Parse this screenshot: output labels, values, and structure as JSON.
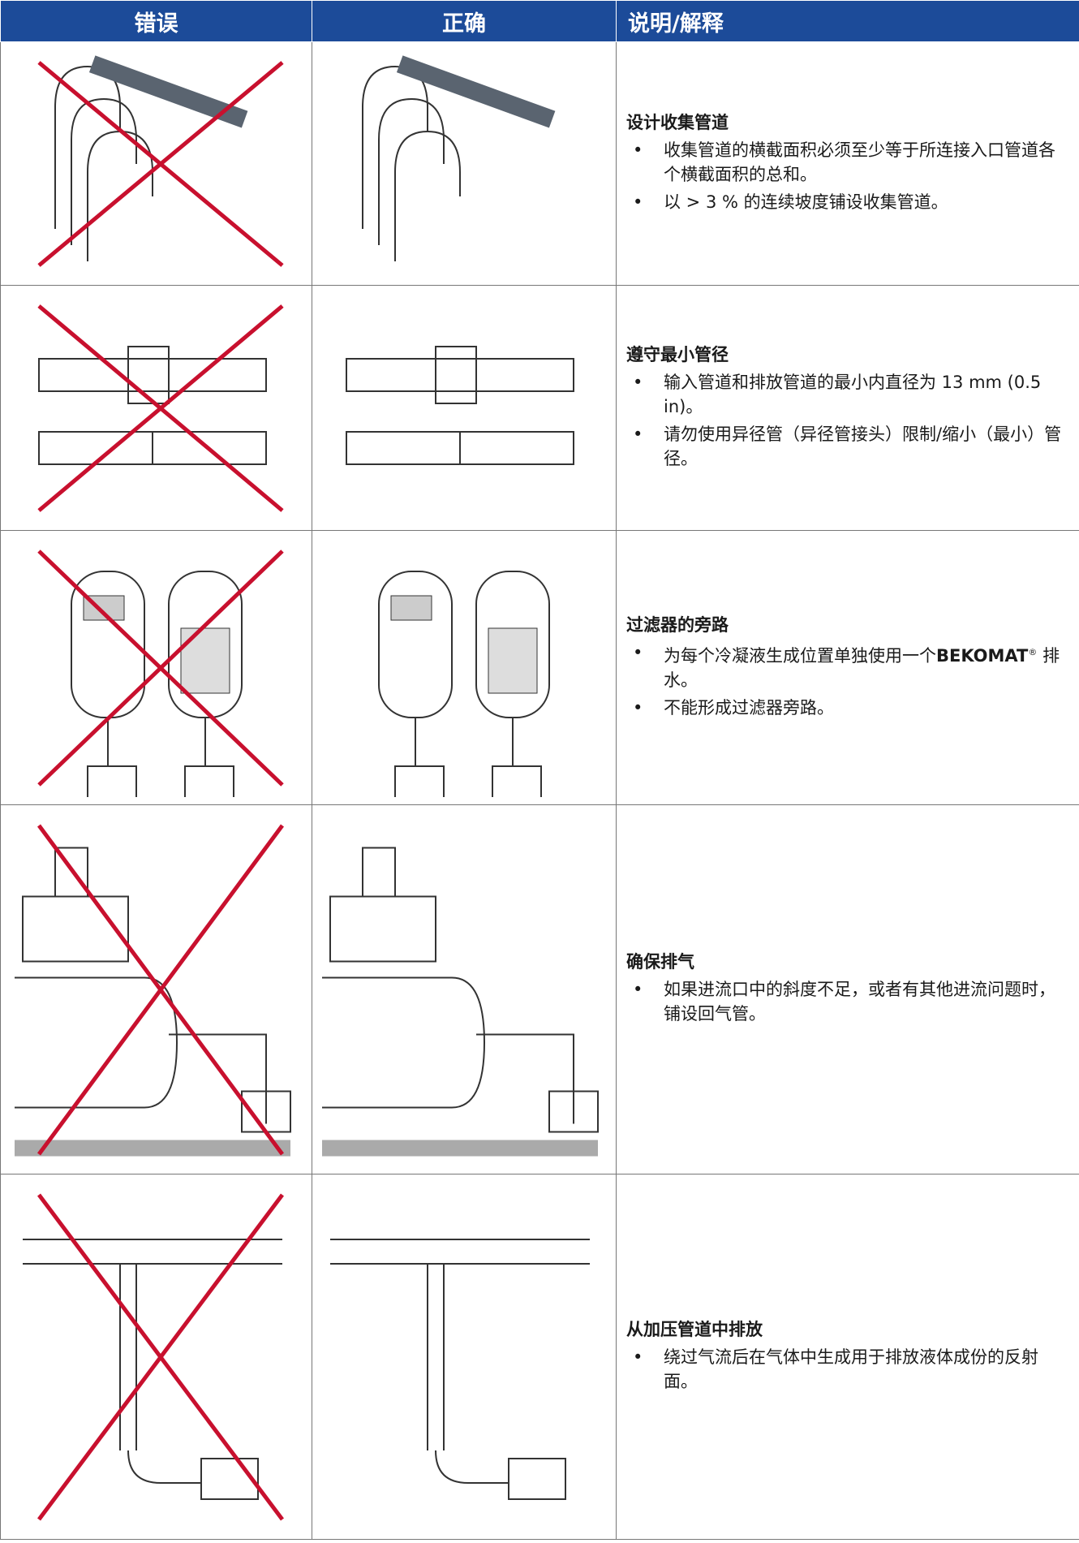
{
  "header": {
    "wrong": "错误",
    "correct": "正确",
    "explanation": "说明/解释"
  },
  "rows": [
    {
      "title": "设计收集管道",
      "bullets": [
        "收集管道的横截面积必须至少等于所连接入口管道各个横截面积的总和。",
        "以 > 3 % 的连续坡度铺设收集管道。"
      ]
    },
    {
      "title": "遵守最小管径",
      "bullets": [
        "输入管道和排放管道的最小内直径为 13 mm (0.5 in)。",
        "请勿使用异径管（异径管接头）限制/缩小（最小）管径。"
      ]
    },
    {
      "title": "过滤器的旁路",
      "bullets": [
        [
          "为每个冷凝液生成位置单独使用一个",
          "BEKOMAT",
          "®",
          " 排水。"
        ],
        "不能形成过滤器旁路。"
      ]
    },
    {
      "title": "确保排气",
      "bullets": [
        "如果进流口中的斜度不足，或者有其他进流问题时，铺设回气管。"
      ]
    },
    {
      "title": "从加压管道中排放",
      "bullets": [
        "绕过气流后在气体中生成用于排放液体成份的反射面。"
      ]
    }
  ]
}
